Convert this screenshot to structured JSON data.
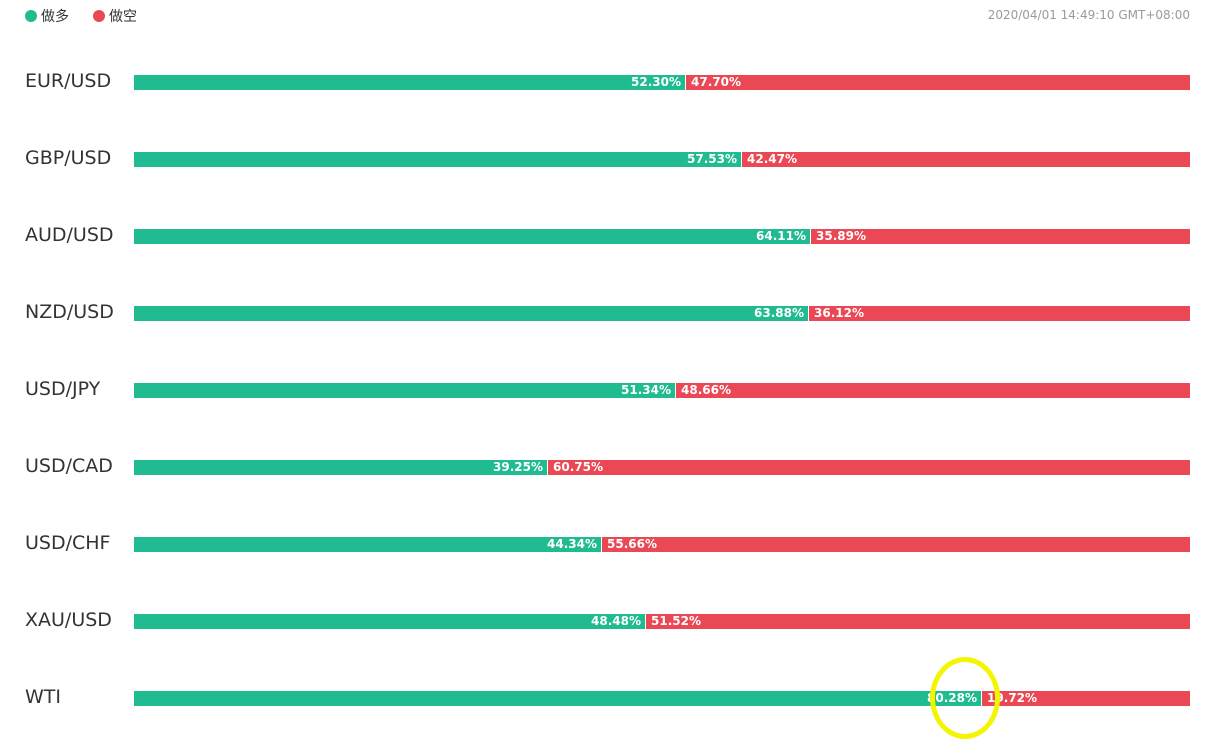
{
  "legend": {
    "long_label": "做多",
    "short_label": "做空",
    "long_color": "#20bb90",
    "short_color": "#ea4855"
  },
  "timestamp": "2020/04/01 14:49:10 GMT+08:00",
  "chart_data": {
    "type": "bar",
    "stacked": true,
    "orientation": "horizontal",
    "categories": [
      "EUR/USD",
      "GBP/USD",
      "AUD/USD",
      "NZD/USD",
      "USD/JPY",
      "USD/CAD",
      "USD/CHF",
      "XAU/USD",
      "WTI"
    ],
    "series": [
      {
        "name": "做多",
        "color": "#20bb90",
        "values": [
          52.3,
          57.53,
          64.11,
          63.88,
          51.34,
          39.25,
          44.34,
          48.48,
          80.28
        ]
      },
      {
        "name": "做空",
        "color": "#ea4855",
        "values": [
          47.7,
          42.47,
          35.89,
          36.12,
          48.66,
          60.75,
          55.66,
          51.52,
          19.72
        ]
      }
    ],
    "labels": {
      "long": [
        "52.30%",
        "57.53%",
        "64.11%",
        "63.88%",
        "51.34%",
        "39.25%",
        "44.34%",
        "48.48%",
        "80.28%"
      ],
      "short": [
        "47.70%",
        "42.47%",
        "35.89%",
        "36.12%",
        "48.66%",
        "60.75%",
        "55.66%",
        "51.52%",
        "19.72%"
      ]
    },
    "xlim": [
      0,
      100
    ],
    "grid": false,
    "legend_position": "top-left",
    "highlighted_label": "80.28%"
  }
}
